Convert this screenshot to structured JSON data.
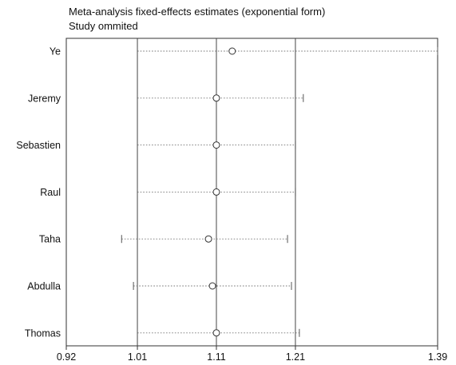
{
  "chart_data": {
    "type": "forest",
    "title": "Meta-analysis fixed-effects estimates (exponential form)",
    "subtitle": "Study ommited",
    "xlim": [
      0.92,
      1.39
    ],
    "x_ticks": [
      0.92,
      1.01,
      1.11,
      1.21,
      1.39
    ],
    "x_tick_labels": [
      "0.92",
      "1.01",
      "1.11",
      "1.21",
      "1.39"
    ],
    "reference_lines": [
      1.01,
      1.11,
      1.21
    ],
    "studies": [
      {
        "name": "Ye",
        "estimate": 1.13,
        "lower": 1.01,
        "upper": 1.39
      },
      {
        "name": "Jeremy",
        "estimate": 1.11,
        "lower": 1.01,
        "upper": 1.22
      },
      {
        "name": "Sebastien",
        "estimate": 1.11,
        "lower": 1.01,
        "upper": 1.21
      },
      {
        "name": "Raul",
        "estimate": 1.11,
        "lower": 1.01,
        "upper": 1.21
      },
      {
        "name": "Taha",
        "estimate": 1.1,
        "lower": 0.99,
        "upper": 1.2
      },
      {
        "name": "Abdulla",
        "estimate": 1.105,
        "lower": 1.005,
        "upper": 1.205
      },
      {
        "name": "Thomas",
        "estimate": 1.11,
        "lower": 1.01,
        "upper": 1.215
      }
    ]
  }
}
